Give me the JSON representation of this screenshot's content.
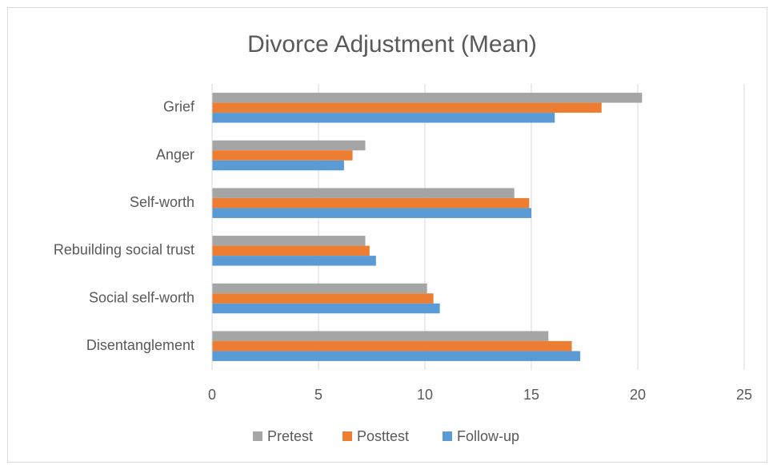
{
  "chart_data": {
    "type": "bar",
    "orientation": "horizontal",
    "title": "Divorce Adjustment (Mean)",
    "categories": [
      "Grief",
      "Anger",
      "Self-worth",
      "Rebuilding social trust",
      "Social self-worth",
      "Disentanglement"
    ],
    "series": [
      {
        "name": "Pretest",
        "color": "#a5a5a5",
        "values": [
          20.2,
          7.2,
          14.2,
          7.2,
          10.1,
          15.8
        ]
      },
      {
        "name": "Posttest",
        "color": "#ed7d31",
        "values": [
          18.3,
          6.6,
          14.9,
          7.4,
          10.4,
          16.9
        ]
      },
      {
        "name": "Follow-up",
        "color": "#5b9bd5",
        "values": [
          16.1,
          6.2,
          15.0,
          7.7,
          10.7,
          17.3
        ]
      }
    ],
    "xlim": [
      0,
      25
    ],
    "xticks": [
      0,
      5,
      10,
      15,
      20,
      25
    ],
    "grid": true,
    "legend": "bottom"
  }
}
